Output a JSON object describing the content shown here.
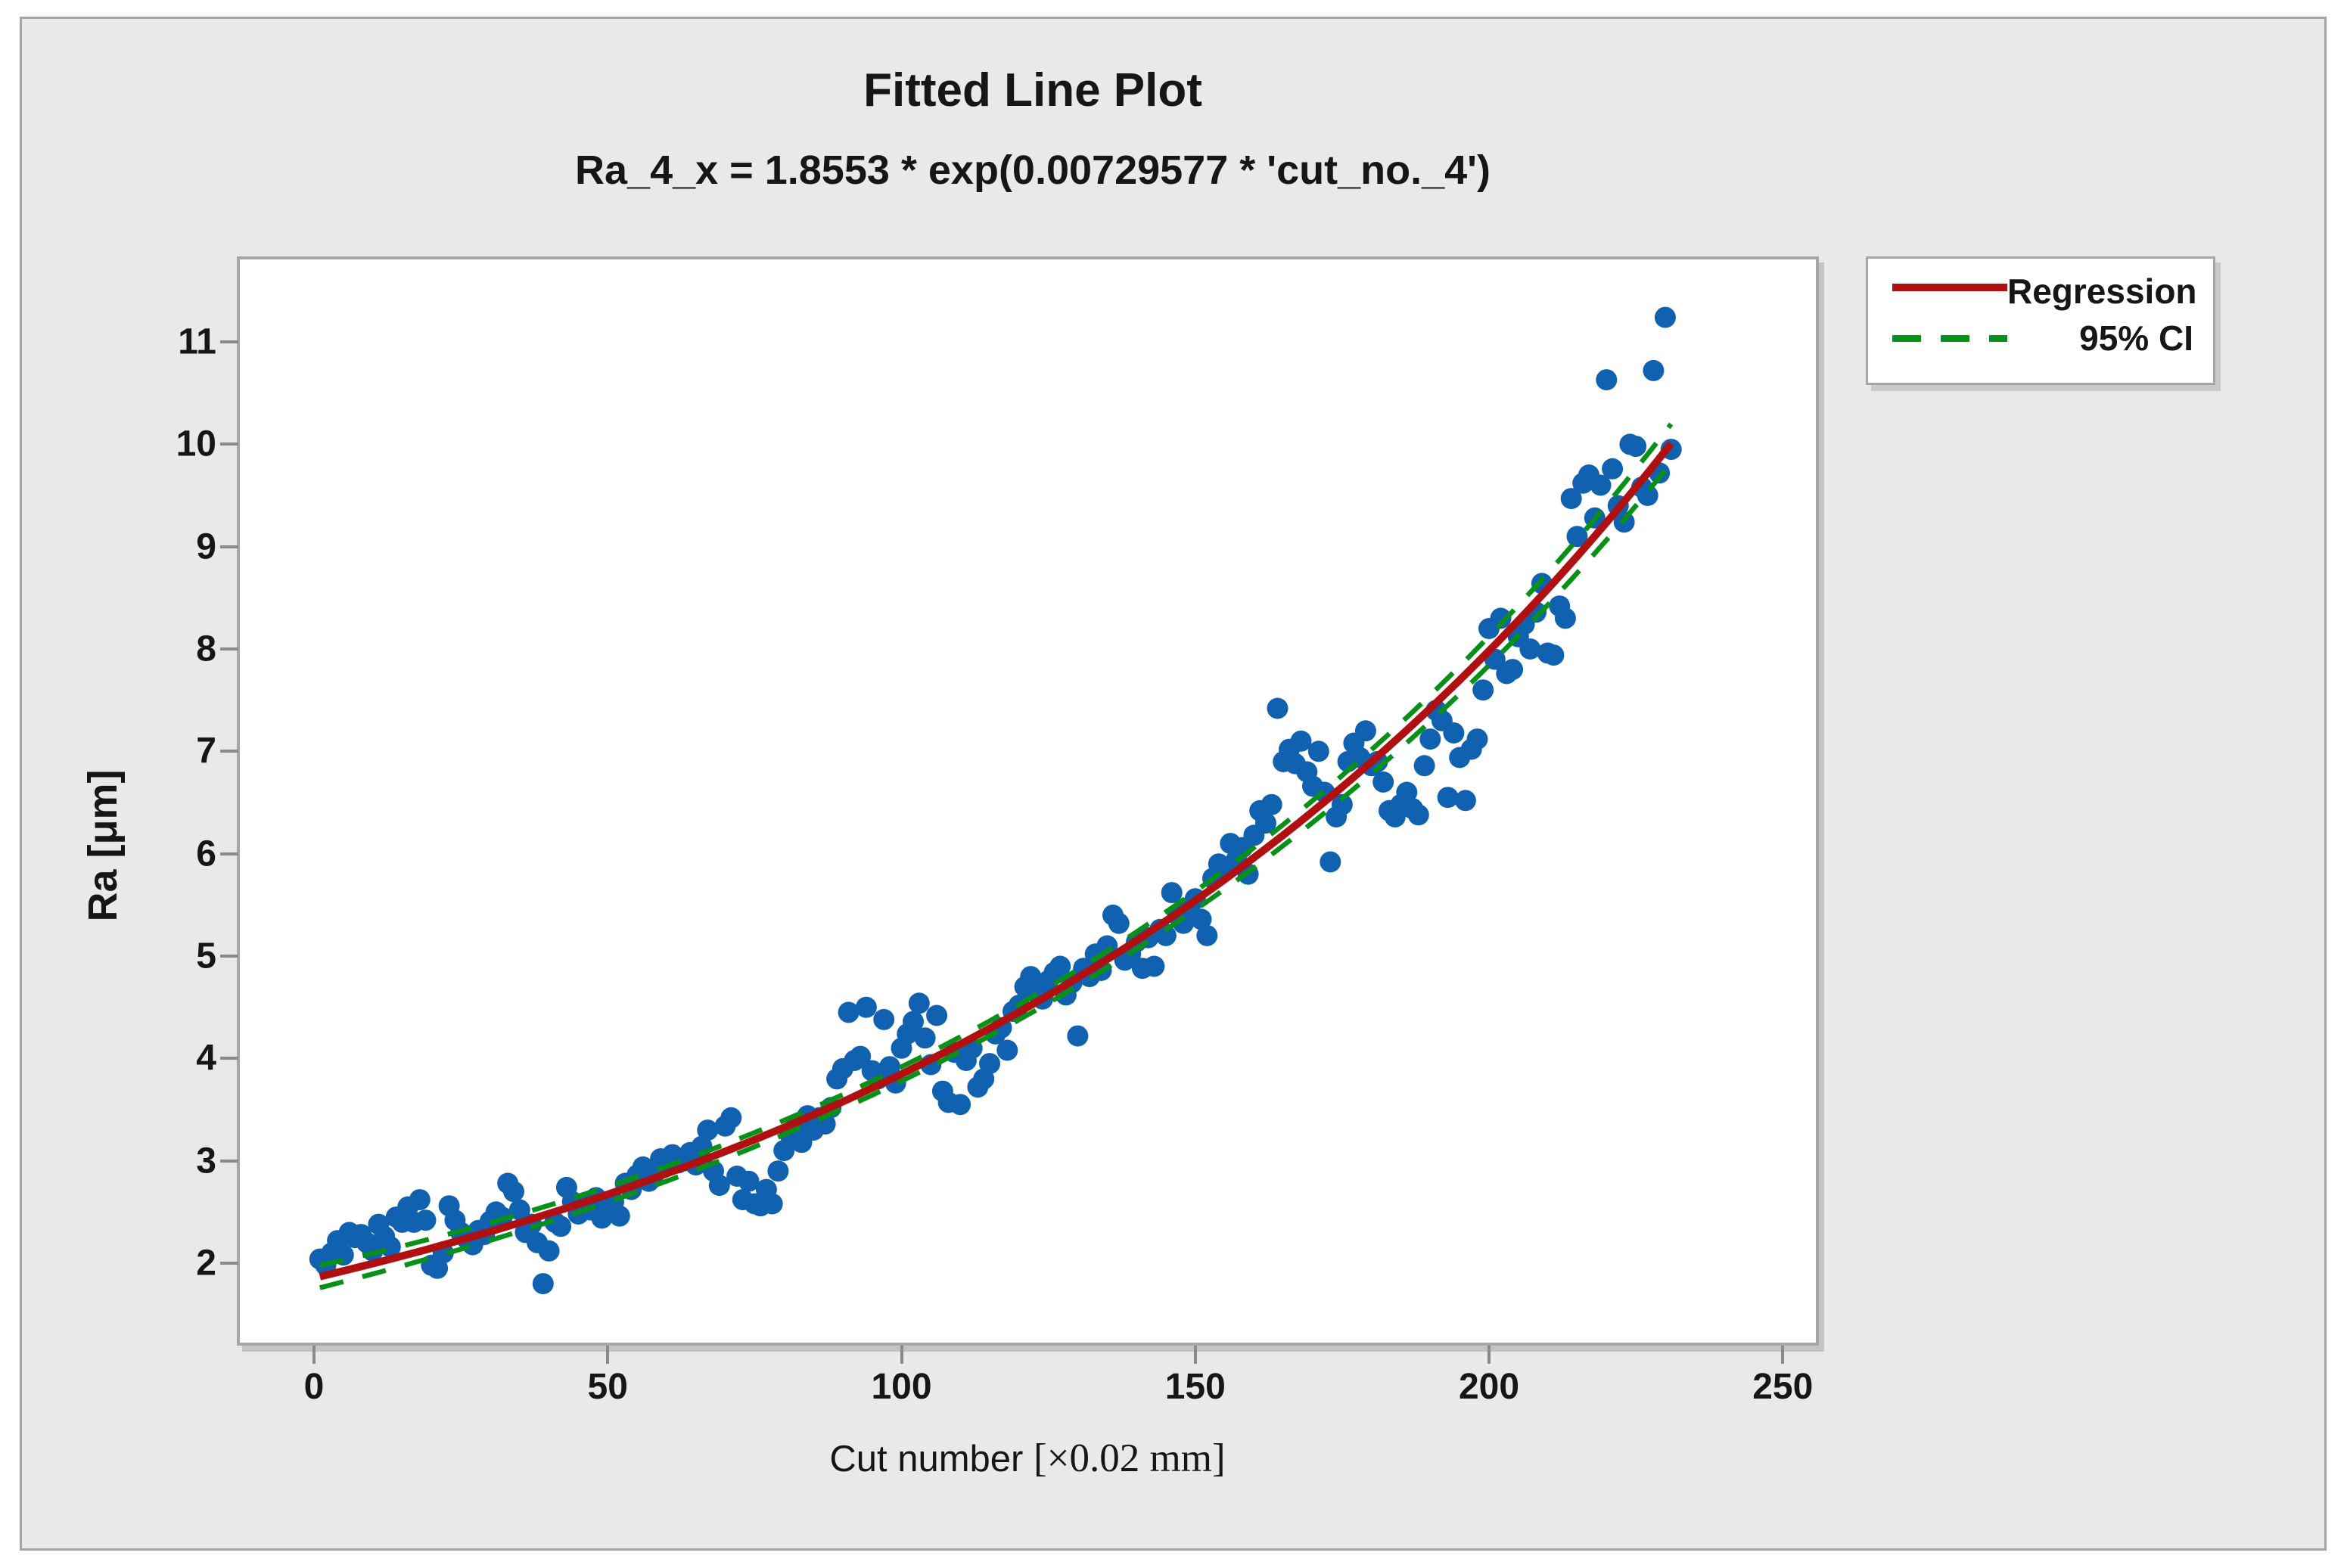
{
  "colors": {
    "page_background": "#FFFFFF",
    "panel_background": "#E9E9E9",
    "panel_border": "#A5A5A5",
    "plot_background": "#FFFFFF",
    "plot_border": "#A6A6A6",
    "point": "#1062B1",
    "regression": "#B01010",
    "ci": "#089018",
    "tick": "#8A8A8A",
    "text": "#161616"
  },
  "header": {
    "title": "Fitted Line Plot",
    "subtitle": "Ra_4_x = 1.8553 * exp(0.00729577 * 'cut_no._4')"
  },
  "legend": {
    "items": [
      {
        "label": "Regression",
        "style": "solid",
        "color": "#B01010"
      },
      {
        "label": "95% CI",
        "style": "dashed",
        "color": "#089018"
      }
    ]
  },
  "axes": {
    "x": {
      "label_prefix": "Cut number ",
      "label_unit": "[×0.02 mm]",
      "ticks": [
        0,
        50,
        100,
        150,
        200,
        250
      ]
    },
    "y": {
      "label": "Ra [μm]",
      "ticks": [
        2,
        3,
        4,
        5,
        6,
        7,
        8,
        9,
        10,
        11
      ]
    }
  },
  "chart_data": {
    "type": "scatter",
    "title": "Fitted Line Plot",
    "equation": "Ra_4_x = 1.8553 * exp(0.00729577 * 'cut_no._4')",
    "xlabel": "Cut number [×0.02 mm]",
    "ylabel": "Ra [μm]",
    "xlim": [
      -13,
      255.5
    ],
    "ylim": [
      1.22,
      11.81
    ],
    "x_ticks": [
      0,
      50,
      100,
      150,
      200,
      250
    ],
    "y_ticks": [
      2,
      3,
      4,
      5,
      6,
      7,
      8,
      9,
      10,
      11
    ],
    "grid": false,
    "legend_position": "top-right",
    "regression": {
      "model": "y = a * exp(b * x)",
      "a": 1.8553,
      "b": 0.00729577,
      "x_start": 1,
      "x_end": 231
    },
    "ci": {
      "level": "95% CI",
      "base": 0.03,
      "prop": 0.01,
      "edge": 0.06,
      "center": 116,
      "halfspan": 115
    },
    "series": [
      {
        "name": "Ra_4_x",
        "points": [
          [
            1,
            2.04
          ],
          [
            2,
            1.98
          ],
          [
            3,
            2.1
          ],
          [
            4,
            2.22
          ],
          [
            5,
            2.08
          ],
          [
            6,
            2.3
          ],
          [
            7,
            2.25
          ],
          [
            8,
            2.28
          ],
          [
            9,
            2.2
          ],
          [
            10,
            2.12
          ],
          [
            11,
            2.38
          ],
          [
            12,
            2.26
          ],
          [
            13,
            2.16
          ],
          [
            14,
            2.45
          ],
          [
            15,
            2.4
          ],
          [
            16,
            2.55
          ],
          [
            17,
            2.4
          ],
          [
            18,
            2.62
          ],
          [
            19,
            2.42
          ],
          [
            20,
            1.98
          ],
          [
            21,
            1.95
          ],
          [
            22,
            2.1
          ],
          [
            23,
            2.56
          ],
          [
            24,
            2.42
          ],
          [
            25,
            2.3
          ],
          [
            26,
            2.24
          ],
          [
            27,
            2.18
          ],
          [
            28,
            2.32
          ],
          [
            29,
            2.28
          ],
          [
            30,
            2.41
          ],
          [
            31,
            2.5
          ],
          [
            32,
            2.45
          ],
          [
            33,
            2.78
          ],
          [
            34,
            2.7
          ],
          [
            35,
            2.52
          ],
          [
            36,
            2.3
          ],
          [
            37,
            2.38
          ],
          [
            38,
            2.2
          ],
          [
            39,
            1.8
          ],
          [
            40,
            2.12
          ],
          [
            41,
            2.4
          ],
          [
            42,
            2.36
          ],
          [
            43,
            2.74
          ],
          [
            44,
            2.6
          ],
          [
            45,
            2.48
          ],
          [
            46,
            2.58
          ],
          [
            47,
            2.52
          ],
          [
            48,
            2.64
          ],
          [
            49,
            2.44
          ],
          [
            50,
            2.5
          ],
          [
            51,
            2.6
          ],
          [
            52,
            2.46
          ],
          [
            53,
            2.78
          ],
          [
            54,
            2.72
          ],
          [
            55,
            2.86
          ],
          [
            56,
            2.94
          ],
          [
            57,
            2.8
          ],
          [
            58,
            2.88
          ],
          [
            59,
            3.02
          ],
          [
            60,
            2.96
          ],
          [
            61,
            3.06
          ],
          [
            62,
            2.98
          ],
          [
            63,
            3.0
          ],
          [
            64,
            3.08
          ],
          [
            65,
            2.96
          ],
          [
            66,
            3.14
          ],
          [
            67,
            3.3
          ],
          [
            68,
            2.9
          ],
          [
            69,
            2.76
          ],
          [
            70,
            3.34
          ],
          [
            71,
            3.42
          ],
          [
            72,
            2.85
          ],
          [
            73,
            2.62
          ],
          [
            74,
            2.8
          ],
          [
            75,
            2.58
          ],
          [
            76,
            2.56
          ],
          [
            77,
            2.72
          ],
          [
            78,
            2.58
          ],
          [
            79,
            2.9
          ],
          [
            80,
            3.1
          ],
          [
            81,
            3.26
          ],
          [
            82,
            3.34
          ],
          [
            83,
            3.18
          ],
          [
            84,
            3.44
          ],
          [
            85,
            3.3
          ],
          [
            86,
            3.42
          ],
          [
            87,
            3.36
          ],
          [
            88,
            3.52
          ],
          [
            89,
            3.8
          ],
          [
            90,
            3.9
          ],
          [
            91,
            4.45
          ],
          [
            92,
            3.98
          ],
          [
            93,
            4.02
          ],
          [
            94,
            4.5
          ],
          [
            95,
            3.88
          ],
          [
            96,
            3.8
          ],
          [
            97,
            4.38
          ],
          [
            98,
            3.92
          ],
          [
            99,
            3.76
          ],
          [
            100,
            4.1
          ],
          [
            101,
            4.24
          ],
          [
            102,
            4.36
          ],
          [
            103,
            4.54
          ],
          [
            104,
            4.2
          ],
          [
            105,
            3.94
          ],
          [
            106,
            4.42
          ],
          [
            107,
            3.68
          ],
          [
            108,
            3.57
          ],
          [
            109,
            4.06
          ],
          [
            110,
            3.55
          ],
          [
            111,
            3.98
          ],
          [
            112,
            4.1
          ],
          [
            113,
            3.72
          ],
          [
            114,
            3.8
          ],
          [
            115,
            3.95
          ],
          [
            116,
            4.24
          ],
          [
            117,
            4.3
          ],
          [
            118,
            4.08
          ],
          [
            119,
            4.46
          ],
          [
            120,
            4.52
          ],
          [
            121,
            4.7
          ],
          [
            122,
            4.8
          ],
          [
            123,
            4.64
          ],
          [
            124,
            4.58
          ],
          [
            125,
            4.76
          ],
          [
            126,
            4.84
          ],
          [
            127,
            4.9
          ],
          [
            128,
            4.62
          ],
          [
            129,
            4.74
          ],
          [
            130,
            4.22
          ],
          [
            131,
            4.88
          ],
          [
            132,
            4.8
          ],
          [
            133,
            5.02
          ],
          [
            134,
            4.86
          ],
          [
            135,
            5.1
          ],
          [
            136,
            5.4
          ],
          [
            137,
            5.32
          ],
          [
            138,
            4.96
          ],
          [
            139,
            5.02
          ],
          [
            140,
            5.14
          ],
          [
            141,
            4.88
          ],
          [
            142,
            5.18
          ],
          [
            143,
            4.9
          ],
          [
            144,
            5.26
          ],
          [
            145,
            5.2
          ],
          [
            146,
            5.62
          ],
          [
            147,
            5.4
          ],
          [
            148,
            5.32
          ],
          [
            149,
            5.48
          ],
          [
            150,
            5.56
          ],
          [
            151,
            5.36
          ],
          [
            152,
            5.2
          ],
          [
            153,
            5.76
          ],
          [
            154,
            5.9
          ],
          [
            155,
            5.84
          ],
          [
            156,
            6.1
          ],
          [
            157,
            5.94
          ],
          [
            158,
            6.06
          ],
          [
            159,
            5.8
          ],
          [
            160,
            6.18
          ],
          [
            161,
            6.42
          ],
          [
            162,
            6.3
          ],
          [
            163,
            6.48
          ],
          [
            164,
            7.42
          ],
          [
            165,
            6.9
          ],
          [
            166,
            7.02
          ],
          [
            167,
            6.88
          ],
          [
            168,
            7.1
          ],
          [
            169,
            6.8
          ],
          [
            170,
            6.66
          ],
          [
            171,
            7.0
          ],
          [
            172,
            6.6
          ],
          [
            173,
            5.92
          ],
          [
            174,
            6.36
          ],
          [
            175,
            6.48
          ],
          [
            176,
            6.9
          ],
          [
            177,
            7.08
          ],
          [
            178,
            6.94
          ],
          [
            179,
            7.2
          ],
          [
            180,
            6.86
          ],
          [
            181,
            6.9
          ],
          [
            182,
            6.7
          ],
          [
            183,
            6.42
          ],
          [
            184,
            6.36
          ],
          [
            185,
            6.48
          ],
          [
            186,
            6.6
          ],
          [
            187,
            6.44
          ],
          [
            188,
            6.38
          ],
          [
            189,
            6.86
          ],
          [
            190,
            7.12
          ],
          [
            191,
            7.4
          ],
          [
            192,
            7.3
          ],
          [
            193,
            6.55
          ],
          [
            194,
            7.18
          ],
          [
            195,
            6.94
          ],
          [
            196,
            6.52
          ],
          [
            197,
            7.02
          ],
          [
            198,
            7.12
          ],
          [
            199,
            7.6
          ],
          [
            200,
            8.2
          ],
          [
            201,
            7.9
          ],
          [
            202,
            8.3
          ],
          [
            203,
            7.76
          ],
          [
            204,
            7.8
          ],
          [
            205,
            8.12
          ],
          [
            206,
            8.24
          ],
          [
            207,
            8.0
          ],
          [
            208,
            8.36
          ],
          [
            209,
            8.64
          ],
          [
            210,
            7.96
          ],
          [
            211,
            7.94
          ],
          [
            212,
            8.42
          ],
          [
            213,
            8.3
          ],
          [
            214,
            9.47
          ],
          [
            215,
            9.1
          ],
          [
            216,
            9.62
          ],
          [
            217,
            9.7
          ],
          [
            218,
            9.28
          ],
          [
            219,
            9.6
          ],
          [
            220,
            10.63
          ],
          [
            221,
            9.76
          ],
          [
            222,
            9.4
          ],
          [
            223,
            9.24
          ],
          [
            224,
            10.0
          ],
          [
            225,
            9.98
          ],
          [
            226,
            9.58
          ],
          [
            227,
            9.5
          ],
          [
            228,
            10.72
          ],
          [
            229,
            9.72
          ],
          [
            230,
            11.24
          ],
          [
            231,
            9.95
          ]
        ]
      }
    ]
  }
}
